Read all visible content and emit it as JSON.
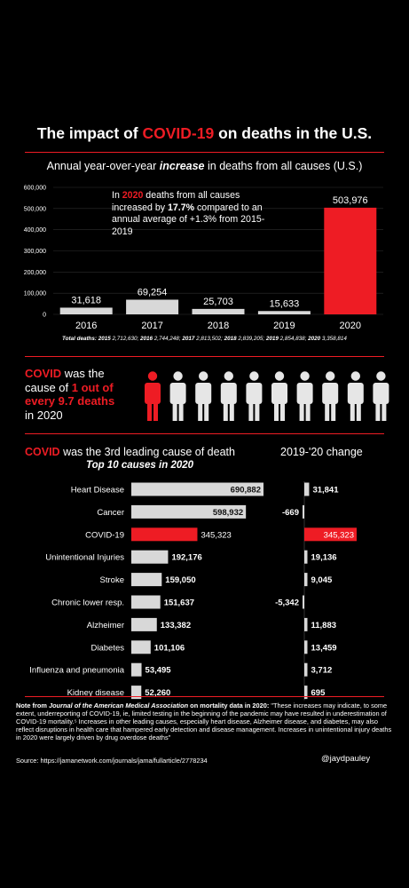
{
  "title": {
    "prefix": "The impact of ",
    "highlight": "COVID-19",
    "suffix": " on deaths in the U.S."
  },
  "section1": {
    "subtitle_prefix": "Annual year-over-year ",
    "subtitle_emphasis": "increase",
    "subtitle_suffix": " in deaths from all causes (U.S.)",
    "note_prefix": "In ",
    "note_year": "2020",
    "note_mid": " deaths from all causes increased by ",
    "note_pct": "17.7%",
    "note_suffix": " compared to an annual average of +1.3% from 2015-2019",
    "totals_label": "Total deaths:",
    "totals": [
      {
        "year": "2015",
        "value": "2,712,630;"
      },
      {
        "year": "2016",
        "value": "2,744,248;"
      },
      {
        "year": "2017",
        "value": "2,813,502;"
      },
      {
        "year": "2018",
        "value": "2,839,205;"
      },
      {
        "year": "2019",
        "value": "2,854,838;"
      },
      {
        "year": "2020",
        "value": "3,358,814"
      }
    ]
  },
  "stat": {
    "line1_red": "COVID",
    "line1_rest": " was the",
    "line2_pre": "cause of ",
    "line2_red": "1 out of",
    "line3_red": "every 9.7 deaths",
    "line4": "in  2020",
    "person_icons": 10,
    "highlighted_icons": 1
  },
  "section2": {
    "title_red": "COVID",
    "title_rest": " was the 3rd leading cause of death",
    "subtitle": "Top 10 causes in 2020",
    "change_title": "2019-'20 change"
  },
  "footnote": {
    "lead": "Note from ",
    "journal": "Journal of the American Medical Association",
    "lead2": " on mortality data in 2020:",
    "body": " \"These increases may indicate, to some extent, underreporting of COVID-19, ie, limited testing in the beginning of the pandemic may have resulted in underestimation of COVID-19 mortality.⁵ Increases in other leading causes, especially heart disease, Alzheimer disease, and diabetes, may also reflect disruptions in health care that hampered early detection and disease management. Increases in unintentional injury deaths in 2020 were largely driven by drug overdose deaths\"",
    "source": "Source: https://jamanetwork.com/journals/jama/fullarticle/2778234",
    "handle": "@jaydpauley"
  },
  "colors": {
    "background": "#000000",
    "accent": "#ee1c24",
    "bar": "#d8d8d8"
  },
  "chart_data": [
    {
      "type": "bar",
      "title": "Annual year-over-year increase in deaths from all causes (U.S.)",
      "categories": [
        "2016",
        "2017",
        "2018",
        "2019",
        "2020"
      ],
      "values": [
        31618,
        69254,
        25703,
        15633,
        503976
      ],
      "value_labels": [
        "31,618",
        "69,254",
        "25,703",
        "15,633",
        "503,976"
      ],
      "highlight_category": "2020",
      "ylim": [
        0,
        600000
      ],
      "yticks": [
        0,
        100000,
        200000,
        300000,
        400000,
        500000,
        600000
      ],
      "ytick_labels": [
        "0",
        "100,000",
        "200,000",
        "300,000",
        "400,000",
        "500,000",
        "600,000"
      ],
      "grid": true
    },
    {
      "type": "bar",
      "orientation": "horizontal",
      "title": "Top 10 causes in 2020",
      "categories": [
        "Heart Disease",
        "Cancer",
        "COVID-19",
        "Unintentional Injuries",
        "Stroke",
        "Chronic lower resp.",
        "Alzheimer",
        "Diabetes",
        "Influenza and pneumonia",
        "Kidney disease"
      ],
      "values": [
        690882,
        598932,
        345323,
        192176,
        159050,
        151637,
        133382,
        101106,
        53495,
        52260
      ],
      "value_labels": [
        "690,882",
        "598,932",
        "345,323",
        "192,176",
        "159,050",
        "151,637",
        "133,382",
        "101,106",
        "53,495",
        "52,260"
      ],
      "highlight_category": "COVID-19"
    },
    {
      "type": "bar",
      "orientation": "horizontal",
      "title": "2019-'20 change",
      "categories": [
        "Heart Disease",
        "Cancer",
        "COVID-19",
        "Unintentional Injuries",
        "Stroke",
        "Chronic lower resp.",
        "Alzheimer",
        "Diabetes",
        "Influenza and pneumonia",
        "Kidney disease"
      ],
      "values": [
        31841,
        -669,
        345323,
        19136,
        9045,
        -5342,
        11883,
        13459,
        3712,
        695
      ],
      "value_labels": [
        "31,841",
        "-669",
        "345,323",
        "19,136",
        "9,045",
        "-5,342",
        "11,883",
        "13,459",
        "3,712",
        "695"
      ],
      "highlight_category": "COVID-19"
    }
  ]
}
